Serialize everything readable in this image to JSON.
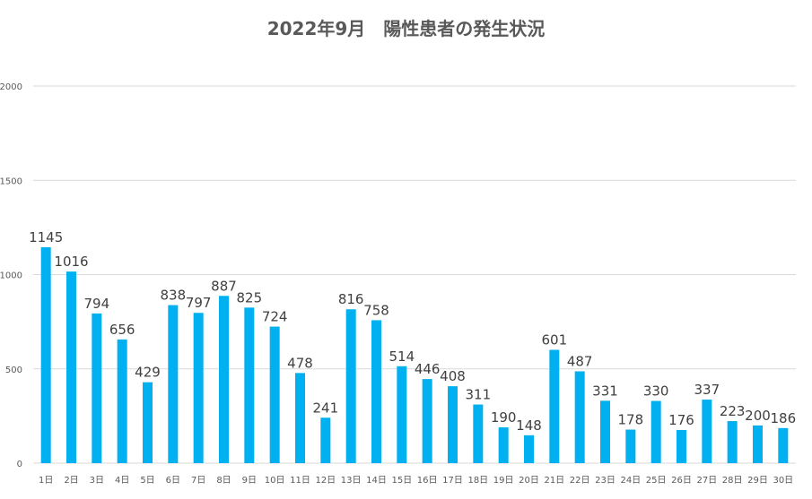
{
  "chart_data": {
    "type": "bar",
    "title": "2022年9月　陽性患者の発生状況",
    "categories": [
      "1日",
      "2日",
      "3日",
      "4日",
      "5日",
      "6日",
      "7日",
      "8日",
      "9日",
      "10日",
      "11日",
      "12日",
      "13日",
      "14日",
      "15日",
      "16日",
      "17日",
      "18日",
      "19日",
      "20日",
      "21日",
      "22日",
      "23日",
      "24日",
      "25日",
      "26日",
      "27日",
      "28日",
      "29日",
      "30日"
    ],
    "values": [
      1145,
      1016,
      794,
      656,
      429,
      838,
      797,
      887,
      825,
      724,
      478,
      241,
      816,
      758,
      514,
      446,
      408,
      311,
      190,
      148,
      601,
      487,
      331,
      178,
      330,
      176,
      337,
      223,
      200,
      186
    ],
    "ylim": [
      0,
      2000
    ],
    "yticks": [
      0,
      500,
      1000,
      1500,
      2000
    ],
    "grid": true,
    "legend": "none",
    "data_labels": true,
    "bar_color": "#00B0F0",
    "grid_color": "#D9D9D9"
  }
}
